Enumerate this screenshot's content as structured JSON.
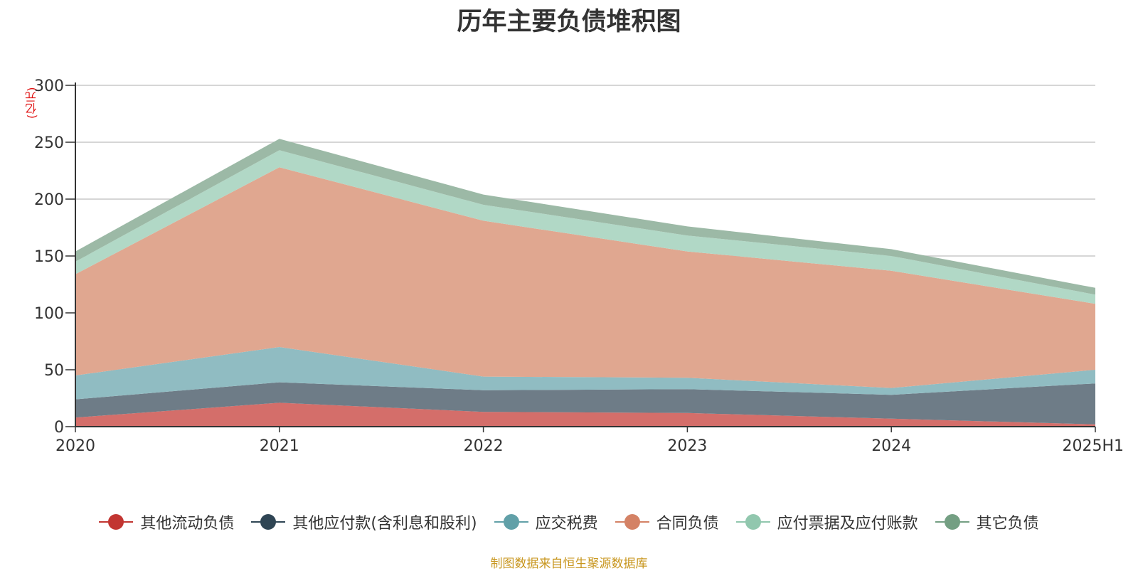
{
  "title": "历年主要负债堆积图",
  "unit_label": "(亿元)",
  "source_note": "制图数据来自恒生聚源数据库",
  "chart_data": {
    "type": "area",
    "stacked": true,
    "title": "历年主要负债堆积图",
    "ylabel": "(亿元)",
    "ylim": [
      0,
      300
    ],
    "yticks": [
      "0",
      "50",
      "100",
      "150",
      "200",
      "250",
      "300"
    ],
    "categories": [
      "2020",
      "2021",
      "2022",
      "2023",
      "2024",
      "2025H1"
    ],
    "grid": true,
    "legend_position": "bottom",
    "series": [
      {
        "name": "其他流动负债",
        "color": "#c23531",
        "fill": "#d46e6a",
        "values": [
          8,
          21,
          13,
          12,
          7,
          2
        ]
      },
      {
        "name": "其他应付款(含利息和股利)",
        "color": "#2f4554",
        "fill": "#6e7c87",
        "values": [
          16,
          18,
          19,
          21,
          21,
          36
        ]
      },
      {
        "name": "应交税费",
        "color": "#61a0a8",
        "fill": "#90bcc2",
        "values": [
          21,
          31,
          12,
          10,
          6,
          12
        ]
      },
      {
        "name": "合同负债",
        "color": "#d48265",
        "fill": "#e0a790",
        "values": [
          89,
          158,
          137,
          111,
          103,
          58
        ]
      },
      {
        "name": "应付票据及应付账款",
        "color": "#91c7ae",
        "fill": "#b1d8c6",
        "values": [
          11,
          15,
          14,
          14,
          13,
          8
        ]
      },
      {
        "name": "其它负债",
        "color": "#749f83",
        "fill": "#9cb9a6",
        "values": [
          9,
          10,
          9,
          8,
          6,
          6
        ]
      }
    ]
  }
}
